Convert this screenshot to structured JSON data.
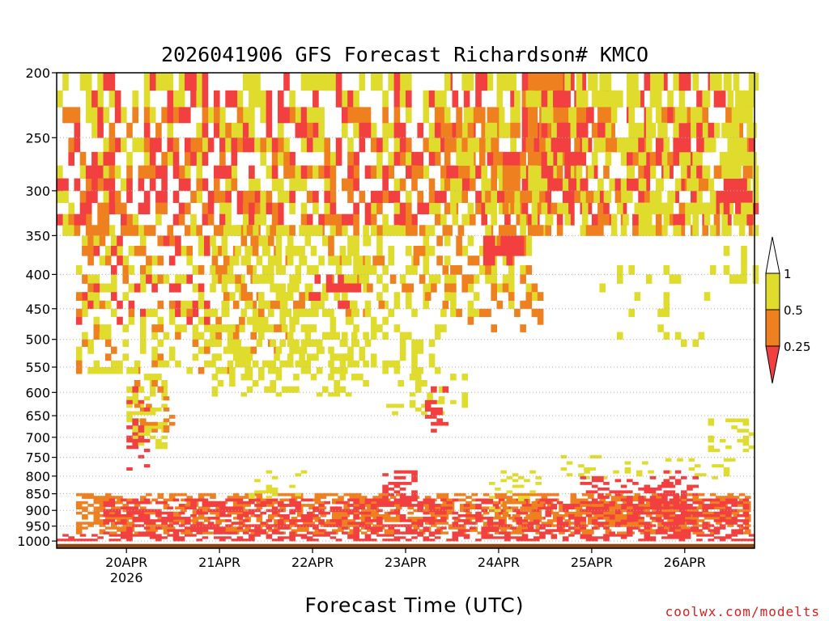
{
  "chart_data": {
    "type": "heatmap",
    "title": "2026041906 GFS Forecast Richardson# KMCO",
    "xlabel": "Forecast Time (UTC)",
    "ylabel": "",
    "credit": "coolwx.com/modelts",
    "x_ticks": [
      {
        "label": "20APR",
        "sublabel": "2026",
        "hour": 18
      },
      {
        "label": "21APR",
        "sublabel": "",
        "hour": 42
      },
      {
        "label": "22APR",
        "sublabel": "",
        "hour": 66
      },
      {
        "label": "23APR",
        "sublabel": "",
        "hour": 90
      },
      {
        "label": "24APR",
        "sublabel": "",
        "hour": 114
      },
      {
        "label": "25APR",
        "sublabel": "",
        "hour": 138
      },
      {
        "label": "26APR",
        "sublabel": "",
        "hour": 162
      }
    ],
    "x_range_hours": [
      0,
      180
    ],
    "y_ticks": [
      200,
      250,
      300,
      350,
      400,
      450,
      500,
      550,
      600,
      650,
      700,
      750,
      800,
      850,
      900,
      950,
      1000
    ],
    "y_range_hpa": [
      200,
      1025
    ],
    "y_scale": "log (pressure, inverted)",
    "grid": "dotted horizontal lines at pressure ticks",
    "colorbar": {
      "levels": [
        "1",
        "0.5",
        "0.25"
      ],
      "colors": {
        "0.5-1": "#e0dc2e",
        "0.25-0.5": "#ef8020",
        "<0.25": "#f24040"
      }
    },
    "ground_color": "#8b4513",
    "regions": [
      {
        "cat": "red",
        "h": [
          0,
          180
        ],
        "p": [
          975,
          1000
        ],
        "d": 0.5
      },
      {
        "cat": "orange",
        "h": [
          5,
          178
        ],
        "p": [
          845,
          975
        ],
        "d": 0.55
      },
      {
        "cat": "red",
        "h": [
          12,
          178
        ],
        "p": [
          860,
          975
        ],
        "d": 0.45
      },
      {
        "cat": "yellow",
        "h": [
          0,
          180
        ],
        "p": [
          200,
          340
        ],
        "d": 0.35
      },
      {
        "cat": "orange",
        "h": [
          0,
          180
        ],
        "p": [
          220,
          340
        ],
        "d": 0.3
      },
      {
        "cat": "red",
        "h": [
          0,
          180
        ],
        "p": [
          200,
          330
        ],
        "d": 0.22
      },
      {
        "cat": "yellow",
        "h": [
          5,
          60
        ],
        "p": [
          340,
          560
        ],
        "d": 0.35
      },
      {
        "cat": "orange",
        "h": [
          5,
          60
        ],
        "p": [
          340,
          560
        ],
        "d": 0.12
      },
      {
        "cat": "red",
        "h": [
          5,
          40
        ],
        "p": [
          340,
          470
        ],
        "d": 0.15
      },
      {
        "cat": "yellow",
        "h": [
          40,
          80
        ],
        "p": [
          330,
          600
        ],
        "d": 0.3
      },
      {
        "cat": "orange",
        "h": [
          40,
          80
        ],
        "p": [
          330,
          450
        ],
        "d": 0.12
      },
      {
        "cat": "yellow",
        "h": [
          60,
          100
        ],
        "p": [
          330,
          560
        ],
        "d": 0.3
      },
      {
        "cat": "red",
        "h": [
          65,
          80
        ],
        "p": [
          400,
          440
        ],
        "d": 0.3
      },
      {
        "cat": "orange",
        "h": [
          80,
          100
        ],
        "p": [
          330,
          460
        ],
        "d": 0.15
      },
      {
        "cat": "yellow",
        "h": [
          18,
          28
        ],
        "p": [
          550,
          720
        ],
        "d": 0.45
      },
      {
        "cat": "orange",
        "h": [
          20,
          30
        ],
        "p": [
          560,
          680
        ],
        "d": 0.25
      },
      {
        "cat": "red",
        "h": [
          18,
          24
        ],
        "p": [
          580,
          780
        ],
        "d": 0.2
      },
      {
        "cat": "yellow",
        "h": [
          85,
          105
        ],
        "p": [
          560,
          640
        ],
        "d": 0.3
      },
      {
        "cat": "red",
        "h": [
          95,
          100
        ],
        "p": [
          580,
          680
        ],
        "d": 0.3
      },
      {
        "cat": "yellow",
        "h": [
          100,
          125
        ],
        "p": [
          200,
          460
        ],
        "d": 0.3
      },
      {
        "cat": "orange",
        "h": [
          100,
          125
        ],
        "p": [
          220,
          480
        ],
        "d": 0.2
      },
      {
        "cat": "red",
        "h": [
          110,
          120
        ],
        "p": [
          340,
          380
        ],
        "d": 0.45
      },
      {
        "cat": "orange",
        "h": [
          120,
          132
        ],
        "p": [
          200,
          260
        ],
        "d": 0.6
      },
      {
        "cat": "red",
        "h": [
          125,
          138
        ],
        "p": [
          210,
          290
        ],
        "d": 0.35
      },
      {
        "cat": "yellow",
        "h": [
          125,
          180
        ],
        "p": [
          200,
          340
        ],
        "d": 0.25
      },
      {
        "cat": "orange",
        "h": [
          135,
          145
        ],
        "p": [
          290,
          340
        ],
        "d": 0.5
      },
      {
        "cat": "red",
        "h": [
          150,
          162
        ],
        "p": [
          240,
          290
        ],
        "d": 0.3
      },
      {
        "cat": "red",
        "h": [
          172,
          180
        ],
        "p": [
          280,
          330
        ],
        "d": 0.6
      },
      {
        "cat": "yellow",
        "h": [
          172,
          180
        ],
        "p": [
          200,
          400
        ],
        "d": 0.35
      },
      {
        "cat": "yellow",
        "h": [
          140,
          170
        ],
        "p": [
          380,
          520
        ],
        "d": 0.12
      },
      {
        "cat": "yellow",
        "h": [
          168,
          180
        ],
        "p": [
          650,
          730
        ],
        "d": 0.3
      },
      {
        "cat": "yellow",
        "h": [
          130,
          175
        ],
        "p": [
          740,
          800
        ],
        "d": 0.15
      },
      {
        "cat": "red",
        "h": [
          135,
          160
        ],
        "p": [
          800,
          900
        ],
        "d": 0.3
      },
      {
        "cat": "orange",
        "h": [
          135,
          165
        ],
        "p": [
          880,
          940
        ],
        "d": 0.4
      },
      {
        "cat": "red",
        "h": [
          155,
          165
        ],
        "p": [
          780,
          960
        ],
        "d": 0.45
      },
      {
        "cat": "yellow",
        "h": [
          48,
          64
        ],
        "p": [
          780,
          860
        ],
        "d": 0.15
      },
      {
        "cat": "red",
        "h": [
          84,
          92
        ],
        "p": [
          780,
          880
        ],
        "d": 0.4
      },
      {
        "cat": "yellow",
        "h": [
          110,
          125
        ],
        "p": [
          780,
          900
        ],
        "d": 0.2
      },
      {
        "cat": "orange",
        "h": [
          115,
          125
        ],
        "p": [
          870,
          920
        ],
        "d": 0.5
      }
    ]
  }
}
